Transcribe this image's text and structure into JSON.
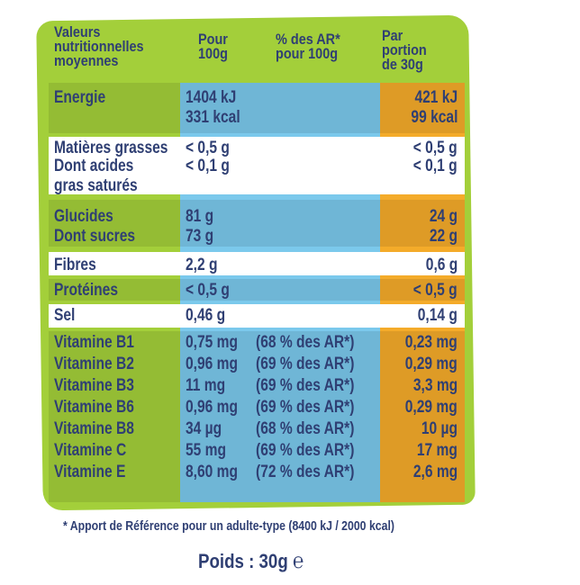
{
  "header": {
    "col1": [
      "Valeurs",
      "nutritionnelles",
      "moyennes"
    ],
    "col2": [
      "Pour",
      "100g"
    ],
    "col3": [
      "% des AR*",
      "pour 100g"
    ],
    "col4": [
      "Par portion",
      "de 30g"
    ]
  },
  "rows": [
    {
      "label": "Energie",
      "v100": "1404 kJ",
      "ar": "",
      "portion": "421 kJ"
    },
    {
      "label": "",
      "v100": "331 kcal",
      "ar": "",
      "portion": "99 kcal"
    },
    {
      "label": "Matières grasses",
      "v100": "< 0,5 g",
      "ar": "",
      "portion": "< 0,5 g"
    },
    {
      "label": "Dont acides",
      "v100": "< 0,1 g",
      "ar": "",
      "portion": "< 0,1 g"
    },
    {
      "label": "gras saturés",
      "v100": "",
      "ar": "",
      "portion": ""
    },
    {
      "label": "Glucides",
      "v100": "81 g",
      "ar": "",
      "portion": "24 g"
    },
    {
      "label": "Dont sucres",
      "v100": "73 g",
      "ar": "",
      "portion": "22 g"
    },
    {
      "label": "Fibres",
      "v100": "2,2 g",
      "ar": "",
      "portion": "0,6 g"
    },
    {
      "label": "Protéines",
      "v100": "< 0,5 g",
      "ar": "",
      "portion": "< 0,5 g"
    },
    {
      "label": "Sel",
      "v100": "0,46 g",
      "ar": "",
      "portion": "0,14 g"
    },
    {
      "label": "Vitamine B1",
      "v100": "0,75 mg",
      "ar": "(68 % des AR*)",
      "portion": "0,23 mg"
    },
    {
      "label": "Vitamine B2",
      "v100": "0,96 mg",
      "ar": "(69 % des AR*)",
      "portion": "0,29 mg"
    },
    {
      "label": "Vitamine B3",
      "v100": "11 mg",
      "ar": "(69 % des AR*)",
      "portion": "3,3 mg"
    },
    {
      "label": "Vitamine B6",
      "v100": "0,96 mg",
      "ar": "(69 % des AR*)",
      "portion": "0,29 mg"
    },
    {
      "label": "Vitamine B8",
      "v100": "34 µg",
      "ar": "(68 % des AR*)",
      "portion": "10 µg"
    },
    {
      "label": "Vitamine C",
      "v100": "55 mg",
      "ar": "(69 % des AR*)",
      "portion": "17 mg"
    },
    {
      "label": "Vitamine E",
      "v100": "8,60 mg",
      "ar": "(72 % des AR*)",
      "portion": "2,6 mg"
    }
  ],
  "footnote": "* Apport de Référence pour un adulte-type (8400 kJ / 2000 kcal)",
  "poids": "Poids : 30g",
  "estimate_symbol": "℮",
  "colors": {
    "green": "#a3cf3a",
    "blue": "#7bc9ec",
    "orange": "#f4ab2a",
    "text": "#2f3f73"
  }
}
